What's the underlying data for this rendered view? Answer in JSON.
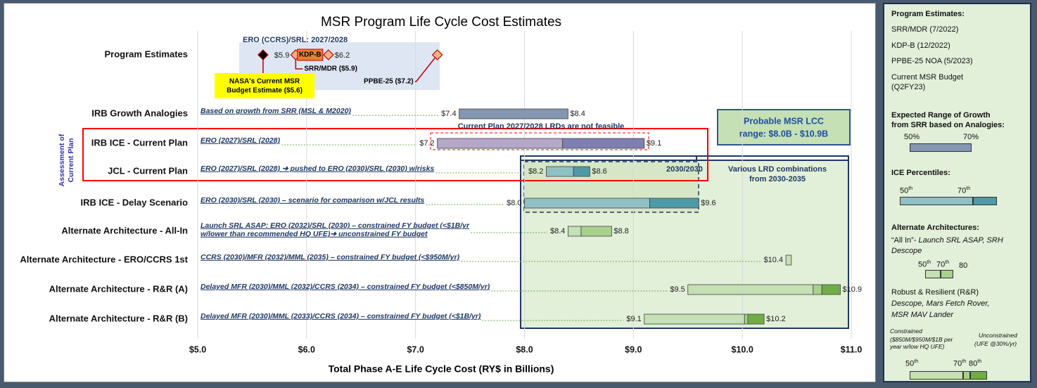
{
  "chart_data": {
    "type": "range_bar",
    "title": "MSR Program Life Cycle Cost Estimates",
    "x_label": "Total Phase A-E Life Cycle Cost (RY$ in Billions)",
    "xlim": [
      5,
      11
    ],
    "xticks": [
      {
        "value": 5,
        "label": "$5.0"
      },
      {
        "value": 6,
        "label": "$6.0"
      },
      {
        "value": 7,
        "label": "$7.0"
      },
      {
        "value": 8,
        "label": "$8.0"
      },
      {
        "value": 9,
        "label": "$9.0"
      },
      {
        "value": 10,
        "label": "$10.0"
      },
      {
        "value": 11,
        "label": "$11.0"
      }
    ],
    "grid": true,
    "side_label": [
      "Assessment of",
      "Current Plan"
    ],
    "program_estimates": {
      "name": "Program Estimates",
      "header": "ERO (CCRS)/SRL: 2027/2028",
      "points": [
        {
          "value": 5.6,
          "label_lines": [
            "NASA's Current MSR",
            "Budget Estimate ($5.6)"
          ],
          "color": "#000000"
        },
        {
          "value": 5.9,
          "label_lines": [
            "SRR/MDR ($5.9)"
          ],
          "value_label": "$5.9",
          "color": "#f4b183"
        },
        {
          "value": 6.2,
          "label_lines": [
            "KDP-B"
          ],
          "value_label": "$6.2",
          "color": "#f4b183"
        },
        {
          "value": 7.2,
          "label_lines": [
            "PPBE-25 ($7.2)"
          ],
          "color": "#f4b183"
        }
      ]
    },
    "rows": [
      {
        "name": "IRB Growth Analogies",
        "note": [
          "Based on growth from SRR (MSL & M2020)"
        ],
        "low": 7.4,
        "splits": [],
        "high": 8.4,
        "low_label": "$7.4",
        "high_label": "$8.4",
        "colors": [
          "#8496b0"
        ]
      },
      {
        "name": "IRB ICE - Current Plan",
        "note": [
          "ERO (2027)/SRL (2028)"
        ],
        "low": 7.2,
        "splits": [
          8.35
        ],
        "high": 9.1,
        "low_label": "$7.2",
        "high_label": "$9.1",
        "colors": [
          "#b4a7c9",
          "#7f7fb3"
        ]
      },
      {
        "name": "JCL - Current Plan",
        "note": [
          "ERO (2027)/SRL (2028) ➔ pushed to ERO (2030)/SRL (2030) w/risks"
        ],
        "low": 8.2,
        "splits": [
          8.45
        ],
        "high": 8.6,
        "low_label": "$8.2",
        "high_label": "$8.6",
        "colors": [
          "#8fc1c4",
          "#4f9aa8"
        ]
      },
      {
        "name": "IRB ICE - Delay Scenario",
        "note": [
          "ERO (2030)/SRL (2030) – scenario for comparison w/JCL results"
        ],
        "low": 8.0,
        "splits": [
          9.15
        ],
        "high": 9.6,
        "low_label": "$8.0",
        "high_label": "$9.6",
        "colors": [
          "#8fc1c4",
          "#4f9aa8"
        ]
      },
      {
        "name": "Alternate Architecture - All-In",
        "note": [
          "Launch SRL ASAP: ERO (2032)/SRL (2030) – constrained FY budget (<$1B/yr",
          "w/lower than recommended HQ UFE)➔ unconstrained FY budget"
        ],
        "low": 8.4,
        "splits": [
          8.52
        ],
        "high": 8.8,
        "low_label": "$8.4",
        "high_label": "$8.8",
        "colors": [
          "#c5e0b4",
          "#a9d18e"
        ]
      },
      {
        "name": "Alternate Architecture - ERO/CCRS 1st",
        "note": [
          "CCRS (2030)/MFR (2032)/MML (2035) – constrained FY budget (<$950M/yr)"
        ],
        "low": 10.4,
        "splits": [],
        "high": 10.45,
        "low_label": "$10.4",
        "colors": [
          "#c5e0b4"
        ]
      },
      {
        "name": "Alternate Architecture - R&R (A)",
        "note": [
          "Delayed MFR (2030)/MML (2032)/CCRS (2034) – constrained FY budget (<$850M/yr)"
        ],
        "low": 9.5,
        "splits": [
          10.65,
          10.73
        ],
        "high": 10.9,
        "low_label": "$9.5",
        "high_label": "$10.9",
        "colors": [
          "#c5e0b4",
          "#a9d18e",
          "#70ad47"
        ]
      },
      {
        "name": "Alternate Architecture - R&R (B)",
        "note": [
          "Delayed MFR (2030)/MML (2033)/CCRS (2034) – constrained FY budget (<$1B/yr)"
        ],
        "low": 9.1,
        "splits": [
          10.02,
          10.05
        ],
        "high": 10.2,
        "low_label": "$9.1",
        "high_label": "$10.2",
        "colors": [
          "#c5e0b4",
          "#a9d18e",
          "#70ad47"
        ]
      }
    ],
    "annotations": {
      "infeasible": "Current Plan 2027/2028 LRDs are not feasible",
      "probable": [
        "Probable MSR LCC",
        "range:  $8.0B - $10.9B"
      ],
      "box_2030": "2030/2030",
      "various": [
        "Various LRD combinations",
        "from 2030-2035"
      ]
    }
  },
  "legend_panel": {
    "program_heading": "Program Estimates:",
    "program_items": [
      "SRR/MDR (7/2022)",
      "KDP-B (12/2022)",
      "PPBE-25 NOA (5/2023)",
      "Current MSR Budget",
      "(Q2FY23)"
    ],
    "growth_heading": [
      "Expected Range of Growth",
      "from SRR based on Analogies:"
    ],
    "growth_labels": [
      "50%",
      "70%"
    ],
    "ice_heading": "ICE Percentiles:",
    "ice_labels": [
      [
        "50",
        "th"
      ],
      [
        "70",
        "th"
      ]
    ],
    "alt_heading": "Alternate Architectures:",
    "all_in": [
      "“All In”",
      "- Launch SRL ASAP, SRH",
      "Descope"
    ],
    "all_in_labels": [
      [
        "50",
        "th"
      ],
      [
        "70",
        "th"
      ],
      [
        "80",
        ""
      ]
    ],
    "rr": [
      "Robust & Resilient (R&R)",
      "Descope, Mars Fetch Rover,",
      "MSR MAV Lander"
    ],
    "constrained": [
      "Constrained",
      "($850M/$950M/$1B per",
      "year w/low HQ UFE)"
    ],
    "unconstrained": [
      "Unconstrained",
      "(UFE @30%/yr)"
    ],
    "rr_labels": [
      [
        "50",
        "th"
      ],
      [
        "70",
        "th"
      ],
      [
        "80",
        "th"
      ]
    ]
  }
}
